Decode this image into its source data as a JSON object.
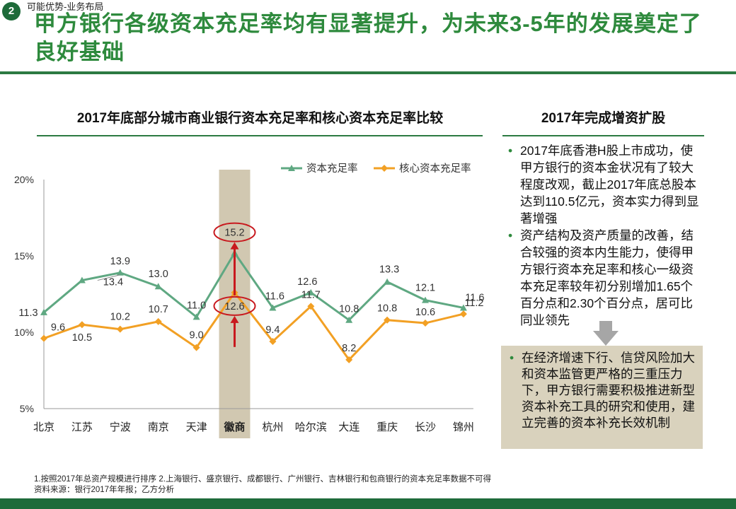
{
  "header": {
    "section_number": "2",
    "section_label": "可能优势-业务布局",
    "title": "甲方银行各级资本充足率均有显著提升，为未来3-5年的发展奠定了良好基础"
  },
  "chart_title": "2017年底部分城市商业银行资本充足率和核心资本充足率比较",
  "chart_data": {
    "type": "line",
    "title": "2017年底部分城市商业银行资本充足率和核心资本充足率比较",
    "categories": [
      "北京",
      "江苏",
      "宁波",
      "南京",
      "天津",
      "徽商",
      "杭州",
      "哈尔滨",
      "大连",
      "重庆",
      "长沙",
      "锦州"
    ],
    "highlight_category": "徽商",
    "y_ticks": [
      "5%",
      "10%",
      "15%",
      "20%"
    ],
    "ylim": [
      5,
      20
    ],
    "series": [
      {
        "name": "资本充足率",
        "color": "#5fa882",
        "values": [
          11.3,
          13.4,
          13.9,
          13.0,
          11.0,
          15.2,
          11.6,
          12.6,
          10.8,
          13.3,
          12.1,
          11.6
        ],
        "labels": [
          "11.3",
          "13.4",
          "13.9",
          "13.0",
          "11.0",
          "15.2",
          "11.6",
          "12.6",
          "10.8",
          "13.3",
          "12.1",
          "11.6"
        ]
      },
      {
        "name": "核心资本充足率",
        "color": "#f2a024",
        "values": [
          9.6,
          10.5,
          10.2,
          10.7,
          9.0,
          12.6,
          9.4,
          11.7,
          8.2,
          10.8,
          10.6,
          11.2
        ],
        "labels": [
          "9.6",
          "10.5",
          "10.2",
          "10.7",
          "9.0",
          "12.6",
          "9.4",
          "11.7",
          "8.2",
          "10.8",
          "10.6",
          "11.2"
        ]
      }
    ],
    "legend_position": "top-right",
    "grid": false
  },
  "side": {
    "title": "2017年完成增资扩股",
    "bullets": [
      "2017年底香港H股上市成功，使甲方银行的资本金状况有了较大程度改观，截止2017年底总股本达到110.5亿元，资本实力得到显著增强",
      "资产结构及资产质量的改善，结合较强的资本内生能力，使得甲方银行资本充足率和核心一级资本充足率较年初分别增加1.65个百分点和2.30个百分点，居可比同业领先"
    ],
    "box_bullet": "在经济增速下行、信贷风险加大和资本监管更严格的三重压力下，甲方银行需要积极推进新型资本补充工具的研究和使用，建立完善的资本补充长效机制"
  },
  "footnotes": {
    "note": "1.按照2017年总资产规模进行排序  2.上海银行、盛京银行、成都银行、广州银行、吉林银行和包商银行的资本充足率数据不可得",
    "source": "资料来源：银行2017年年报；乙方分析"
  },
  "colors": {
    "brand_green": "#2e8a3d",
    "dark_green": "#1e6b3a",
    "highlight_band": "#d1c8b1",
    "circle_red": "#c8191e"
  }
}
